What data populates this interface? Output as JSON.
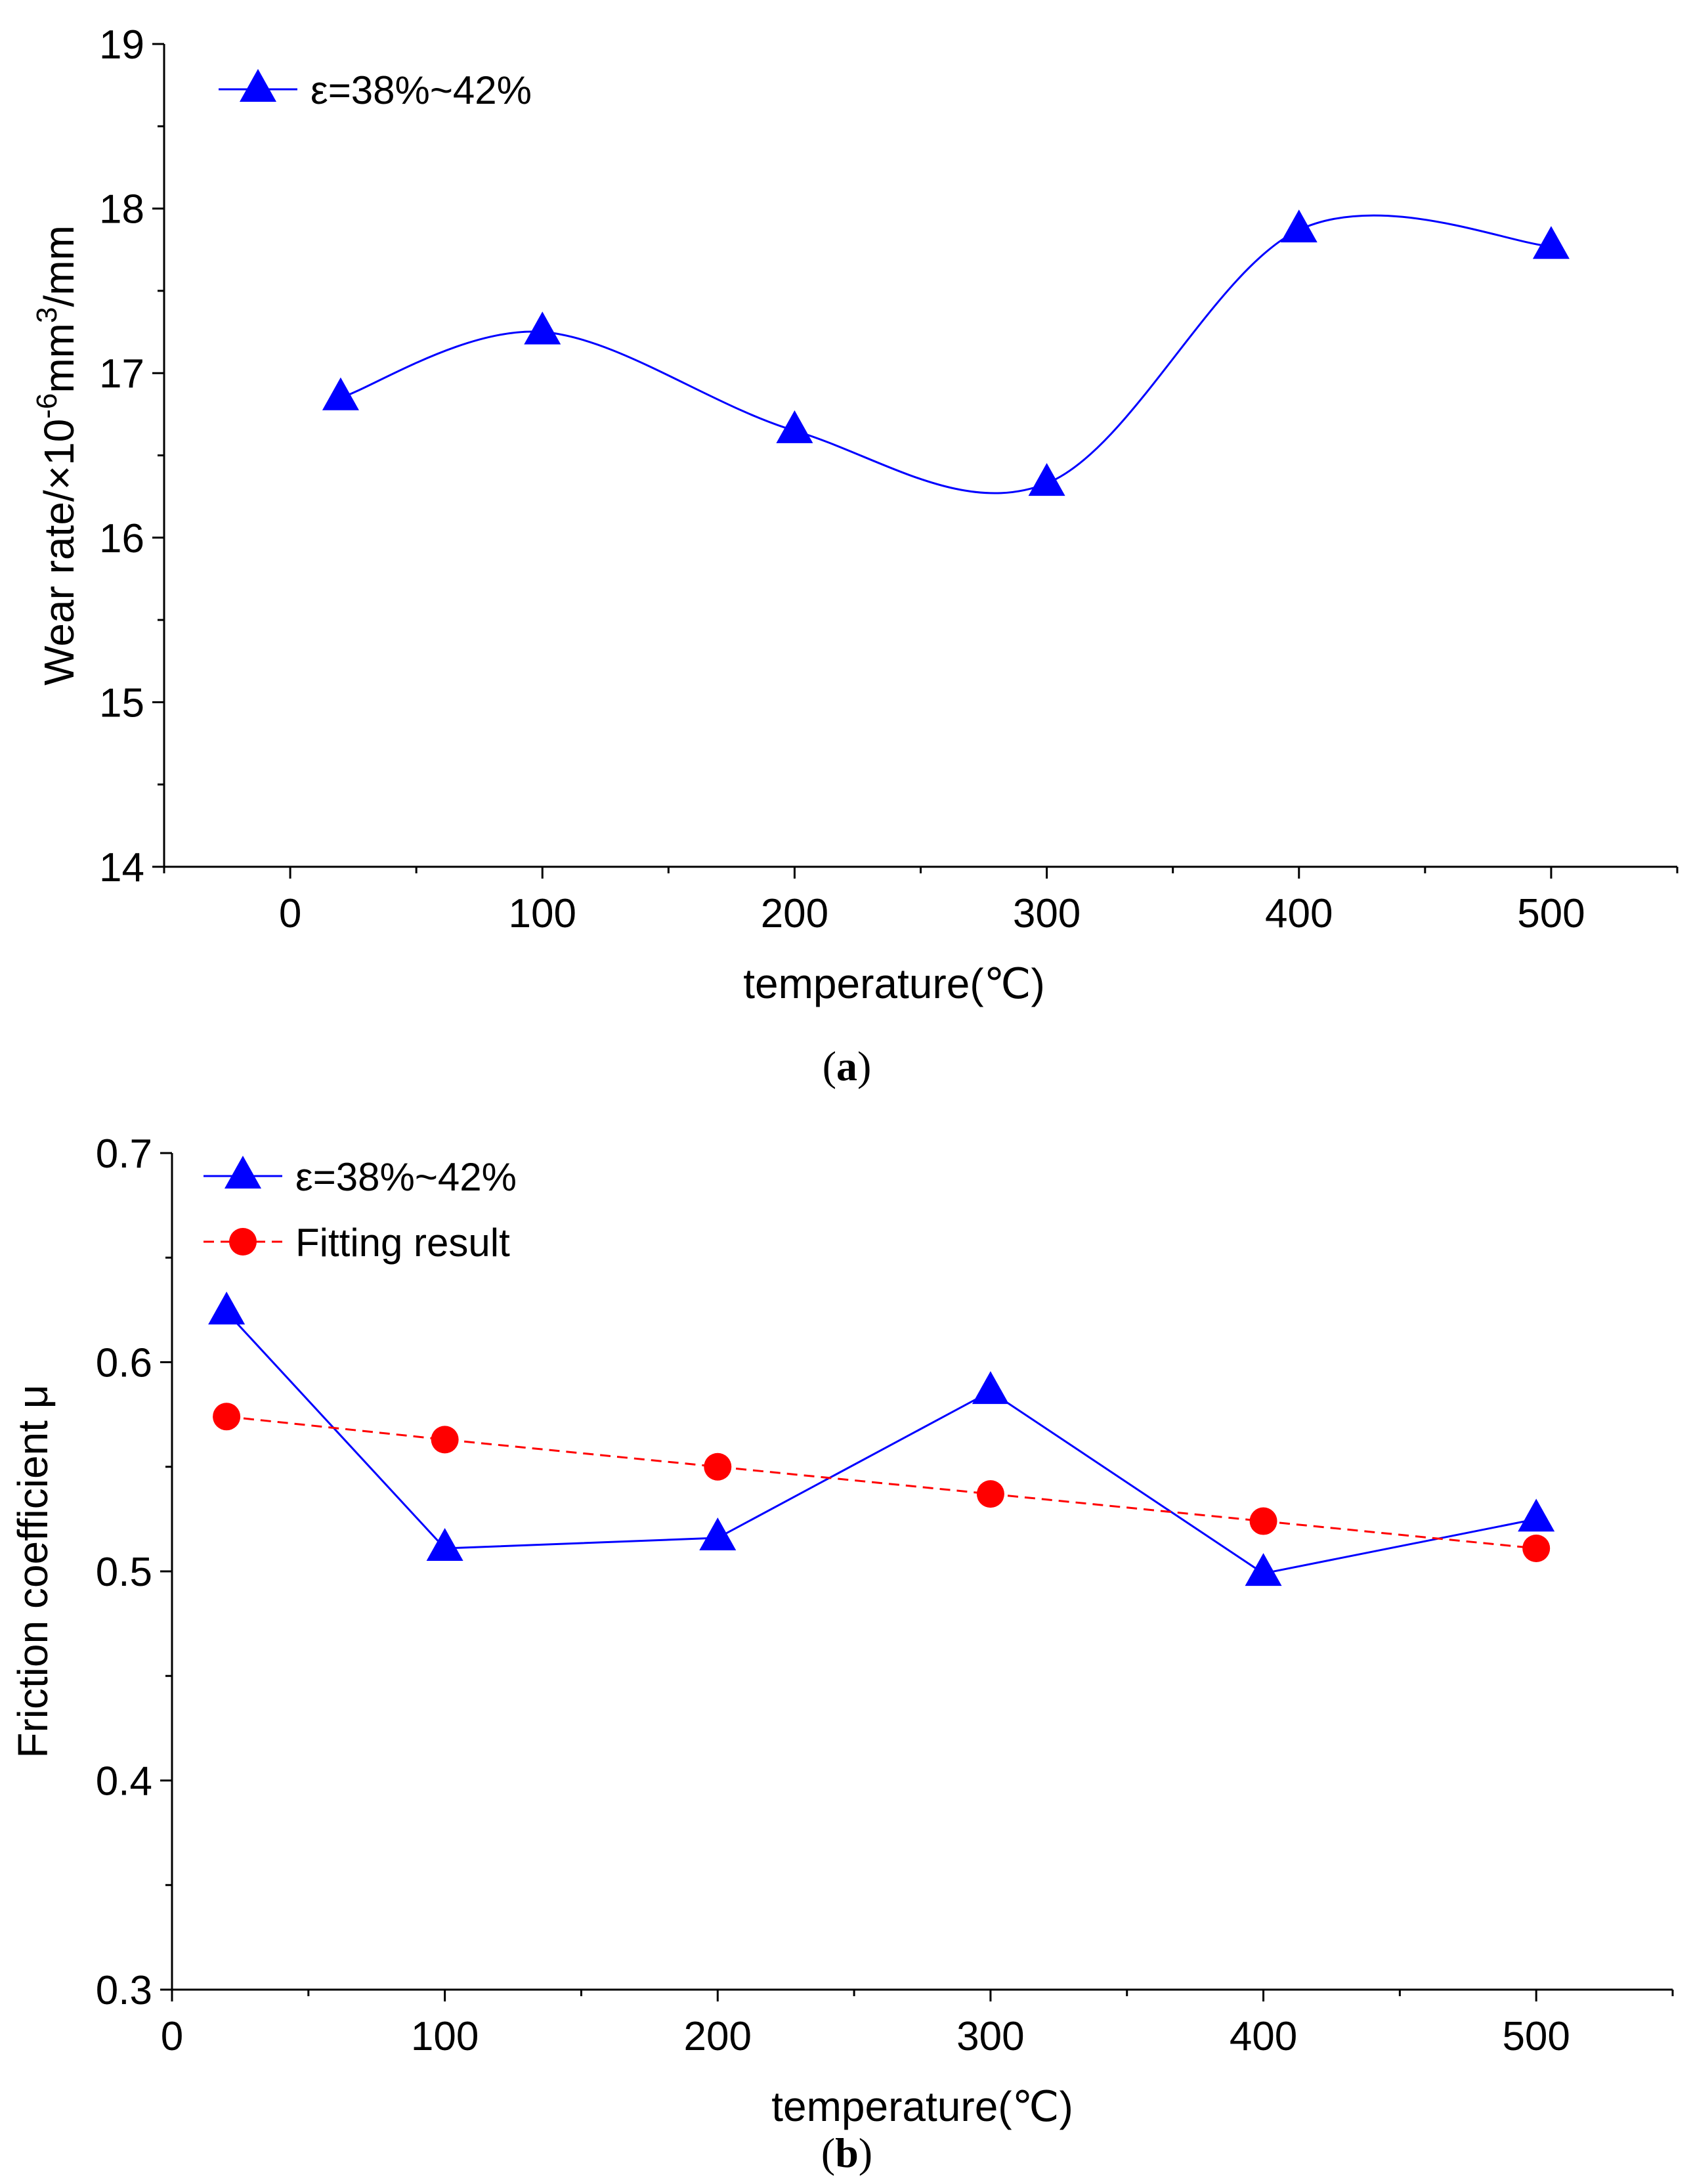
{
  "chart_data": [
    {
      "id": "a",
      "type": "line",
      "title": "",
      "caption": {
        "open": "(",
        "letter": "a",
        "close": ")"
      },
      "xlabel": "temperature(℃)",
      "ylabel_parts": {
        "base": "Wear rate/×10",
        "exp1": "-6",
        "mid": "mm",
        "exp2": "3",
        "end": "/mm"
      },
      "xlim": [
        -50,
        550
      ],
      "ylim": [
        14,
        19
      ],
      "xticks": [
        0,
        100,
        200,
        300,
        400,
        500
      ],
      "xtick_labels": [
        "0",
        "100",
        "200",
        "300",
        "400",
        "500"
      ],
      "yticks": [
        14,
        15,
        16,
        17,
        18,
        19
      ],
      "ytick_labels": [
        "14",
        "15",
        "16",
        "17",
        "18",
        "19"
      ],
      "legend_position": "top-left",
      "series": [
        {
          "name": "ε=38%~42%",
          "color": "#0000ff",
          "marker": "triangle",
          "line": "smooth-spline",
          "x": [
            20,
            100,
            200,
            300,
            400,
            500
          ],
          "y": [
            16.85,
            17.25,
            16.65,
            16.33,
            17.87,
            17.77
          ]
        }
      ]
    },
    {
      "id": "b",
      "type": "line",
      "title": "",
      "caption": {
        "open": "(",
        "letter": "b",
        "close": ")"
      },
      "xlabel": "temperature(℃)",
      "ylabel": "Friction coefficient μ",
      "xlim": [
        0,
        550
      ],
      "ylim": [
        0.3,
        0.7
      ],
      "xticks": [
        0,
        100,
        200,
        300,
        400,
        500
      ],
      "xtick_labels": [
        "0",
        "100",
        "200",
        "300",
        "400",
        "500"
      ],
      "yticks": [
        0.3,
        0.4,
        0.5,
        0.6,
        0.7
      ],
      "ytick_labels": [
        "0.3",
        "0.4",
        "0.5",
        "0.6",
        "0.7"
      ],
      "legend_position": "top-left",
      "series": [
        {
          "name": "ε=38%~42%",
          "color": "#0000ff",
          "marker": "triangle",
          "line": "solid",
          "x": [
            20,
            100,
            200,
            300,
            400,
            500
          ],
          "y": [
            0.624,
            0.511,
            0.516,
            0.586,
            0.499,
            0.525
          ]
        },
        {
          "name": "Fitting result",
          "color": "#ff0000",
          "marker": "circle",
          "line": "dashed",
          "x": [
            20,
            100,
            200,
            300,
            400,
            500
          ],
          "y": [
            0.574,
            0.563,
            0.55,
            0.537,
            0.524,
            0.511
          ]
        }
      ]
    }
  ]
}
